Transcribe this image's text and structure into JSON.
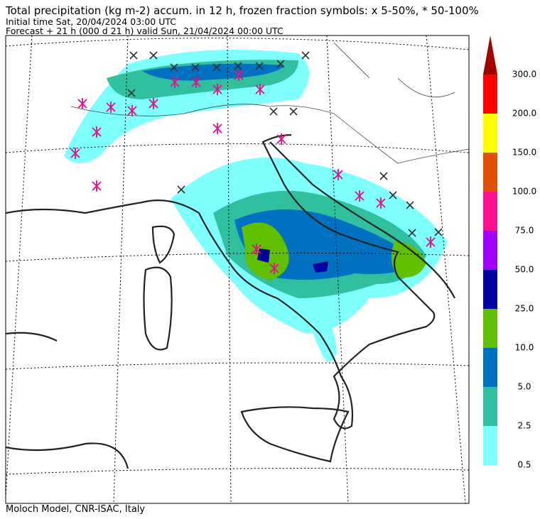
{
  "header": {
    "title": "Total precipitation (kg m-2) accum. in 12 h, frozen fraction symbols: x 5-50%, * 50-100%",
    "initial_time": "Initial time  Sat, 20/04/2024  03:00 UTC",
    "forecast": "Forecast  +  21 h  (000 d 21 h)  valid Sun, 21/04/2024 00:00 UTC"
  },
  "colorbar": {
    "labels": [
      "0.5",
      "2.5",
      "5.0",
      "10.0",
      "25.0",
      "50.0",
      "75.0",
      "100.0",
      "150.0",
      "200.0",
      "300.0"
    ],
    "colors": [
      "#80ffff",
      "#30c0a0",
      "#0070c0",
      "#60c000",
      "#0000a0",
      "#a000ff",
      "#ff1090",
      "#e05000",
      "#ffff00",
      "#ff0000"
    ],
    "extend_color": "#a00000"
  },
  "footer": "Moloch Model, CNR-ISAC, Italy"
}
